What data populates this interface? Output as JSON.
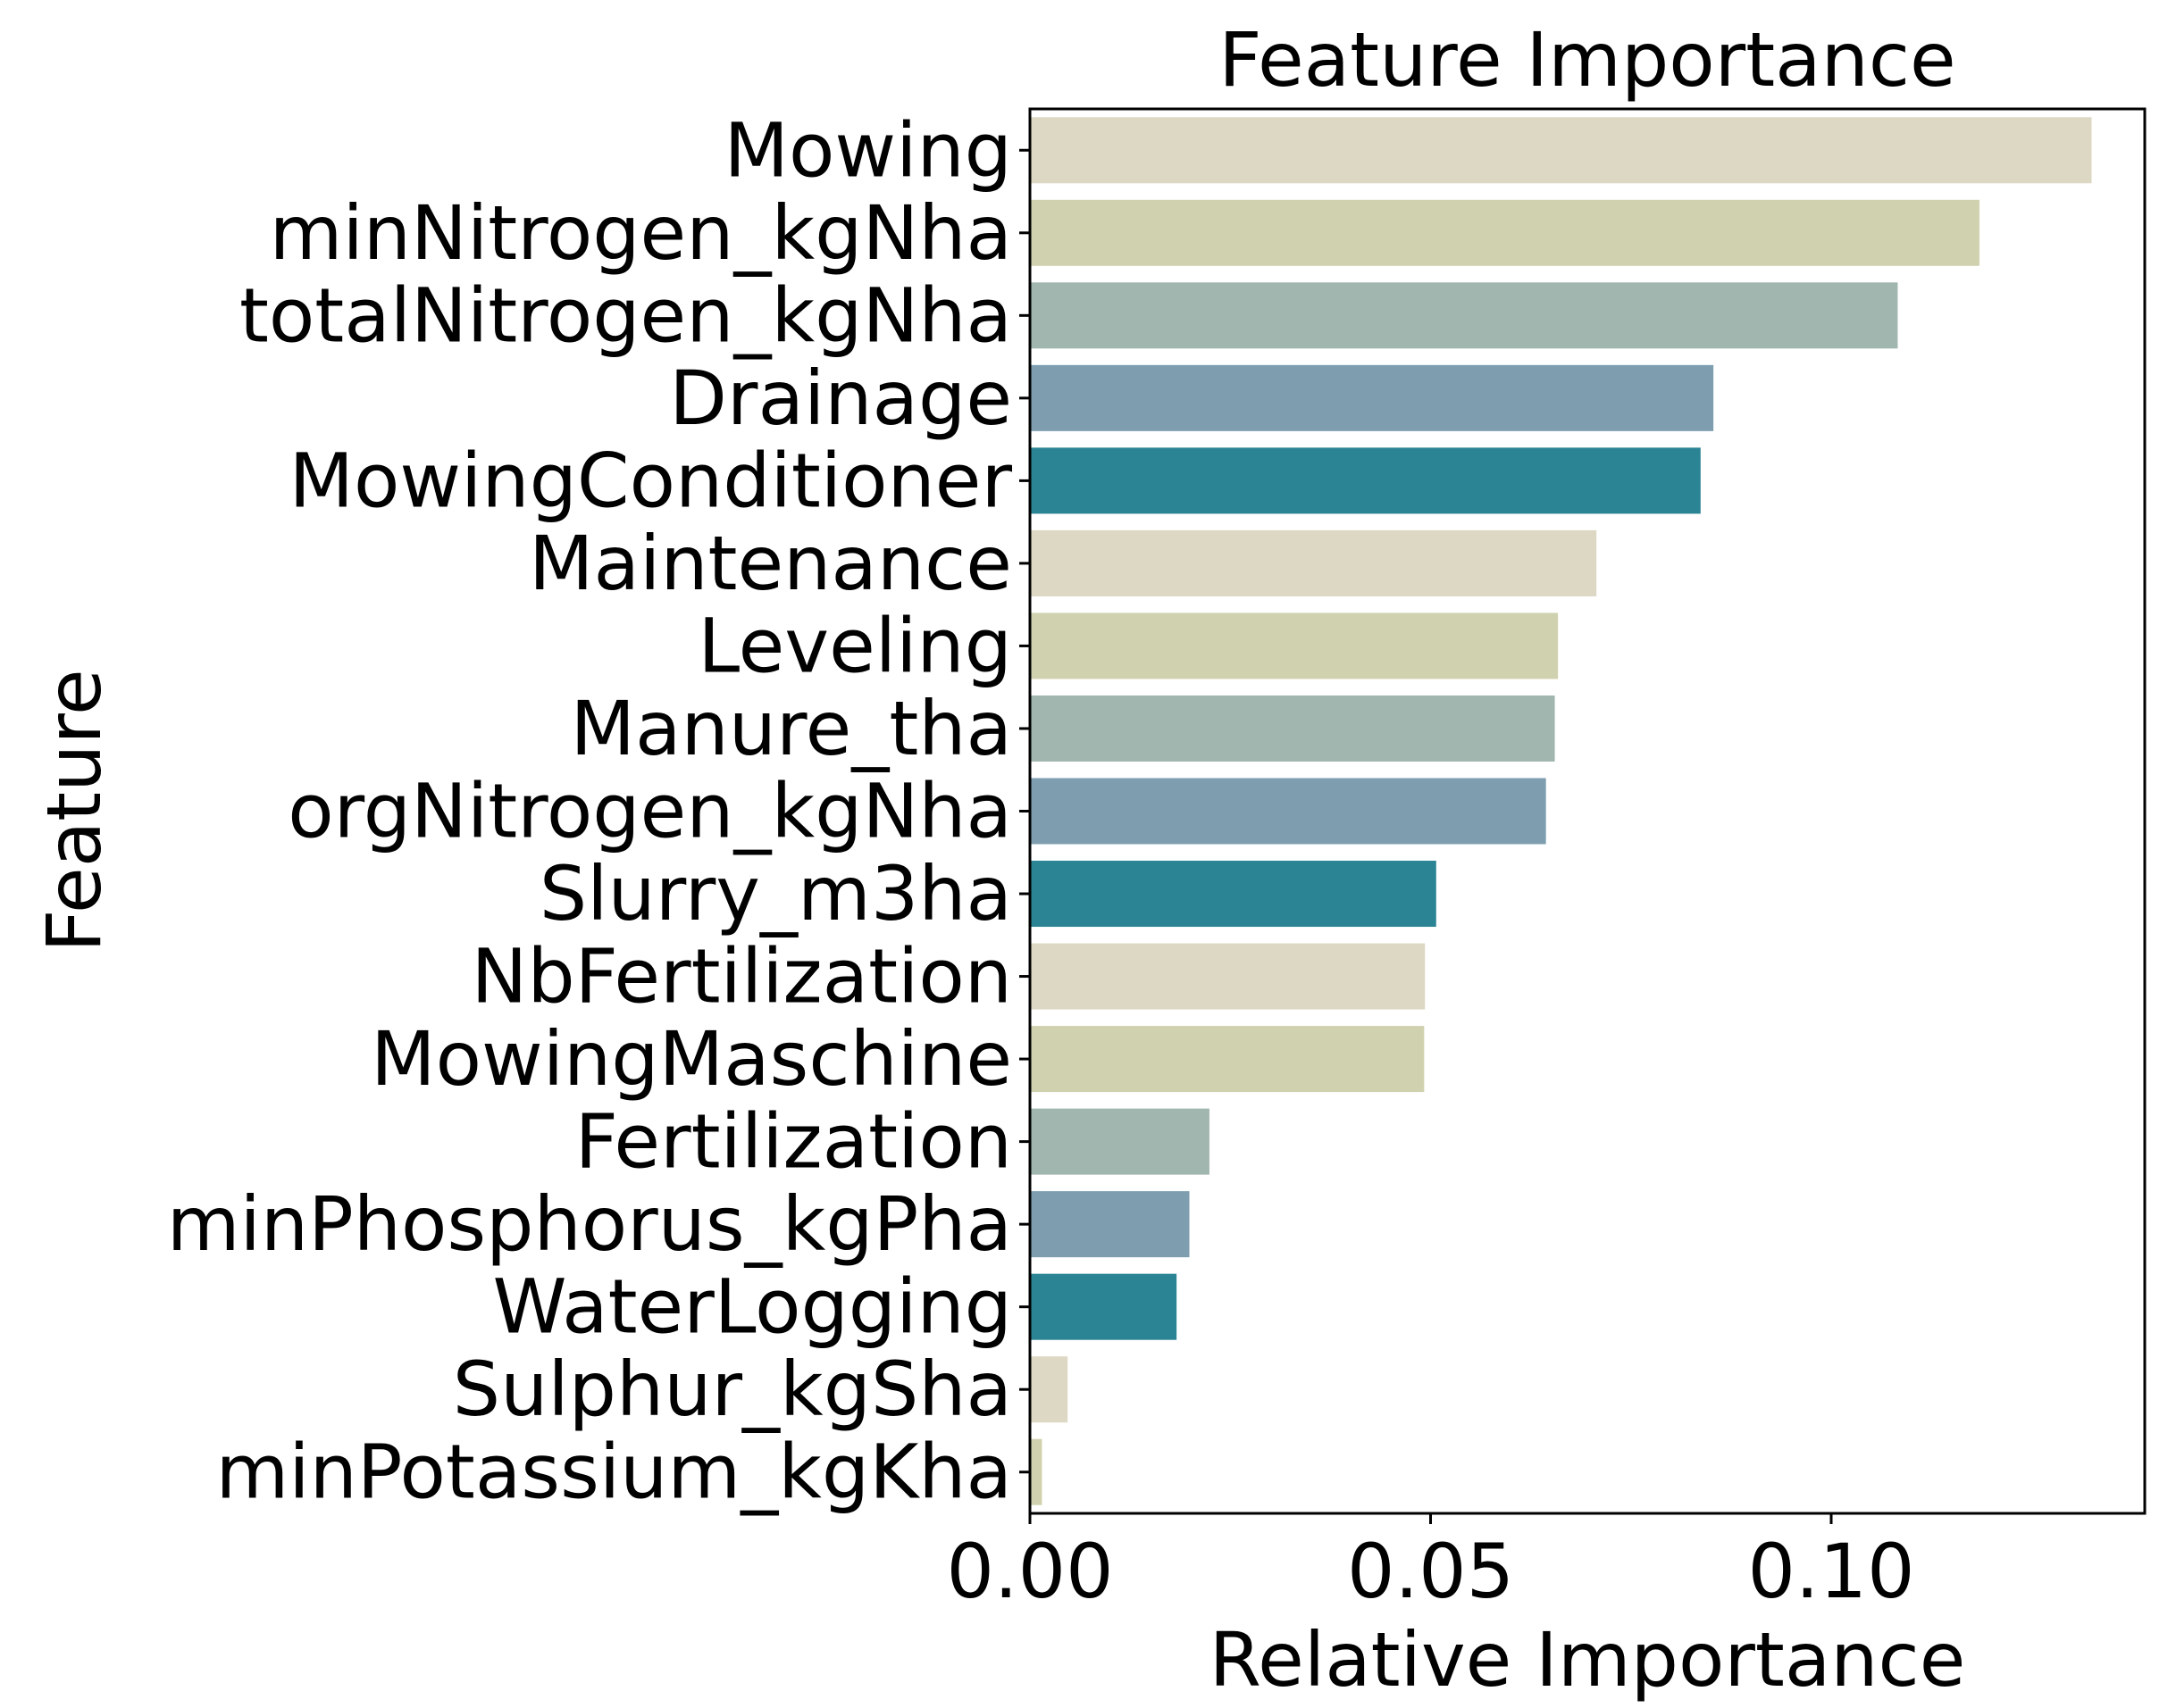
{
  "chart_data": {
    "type": "bar",
    "orientation": "horizontal",
    "title": "Feature Importance",
    "xlabel": "Relative Importance",
    "ylabel": "Feature",
    "xlim": [
      0,
      0.138
    ],
    "xticks": [
      0.0,
      0.05,
      0.1
    ],
    "xtick_labels": [
      "0.00",
      "0.05",
      "0.10"
    ],
    "grid": false,
    "palette": [
      "#ddd8c4",
      "#d0d2af",
      "#a1b6ae",
      "#7e9eb0",
      "#2b8494"
    ],
    "categories": [
      "Mowing",
      "minNitrogen_kgNha",
      "totalNitrogen_kgNha",
      "Drainage",
      "MowingConditioner",
      "Maintenance",
      "Leveling",
      "Manure_tha",
      "orgNitrogen_kgNha",
      "Slurry_m3ha",
      "NbFertilization",
      "MowingMaschine",
      "Fertilization",
      "minPhosphorus_kgPha",
      "WaterLogging",
      "Sulphur_kgSha",
      "minPotassium_kgKha"
    ],
    "values": [
      0.1325,
      0.1185,
      0.1083,
      0.0853,
      0.0837,
      0.0707,
      0.0659,
      0.0655,
      0.0644,
      0.0507,
      0.0493,
      0.0492,
      0.0224,
      0.0199,
      0.0183,
      0.0047,
      0.0015
    ]
  }
}
